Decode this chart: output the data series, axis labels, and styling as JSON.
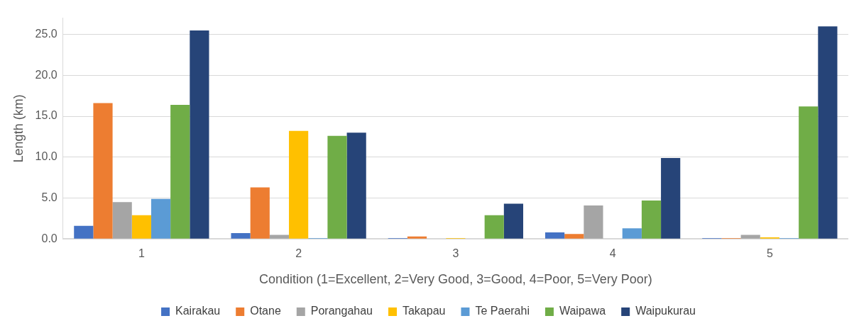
{
  "chart_data": {
    "type": "bar",
    "xlabel": "Condition (1=Excellent, 2=Very Good, 3=Good, 4=Poor, 5=Very Poor)",
    "ylabel": "Length (km)",
    "categories": [
      "1",
      "2",
      "3",
      "4",
      "5"
    ],
    "series": [
      {
        "name": "Kairakau",
        "color": "#4472c4",
        "values": [
          1.6,
          0.7,
          0.1,
          0.8,
          0.1
        ]
      },
      {
        "name": "Otane",
        "color": "#ed7d31",
        "values": [
          16.6,
          6.3,
          0.3,
          0.6,
          0.1
        ]
      },
      {
        "name": "Porangahau",
        "color": "#a5a5a5",
        "values": [
          4.5,
          0.5,
          0,
          4.1,
          0.5
        ]
      },
      {
        "name": "Takapau",
        "color": "#ffc000",
        "values": [
          2.9,
          13.2,
          0.1,
          0,
          0.2
        ]
      },
      {
        "name": "Te Paerahi",
        "color": "#5b9bd5",
        "values": [
          4.9,
          0.1,
          0,
          1.3,
          0.1
        ]
      },
      {
        "name": "Waipawa",
        "color": "#70ad47",
        "values": [
          16.4,
          12.6,
          2.9,
          4.7,
          16.2
        ]
      },
      {
        "name": "Waipukurau",
        "color": "#264478",
        "values": [
          25.5,
          13.0,
          4.3,
          9.9,
          26.0
        ]
      }
    ],
    "ylim": [
      0,
      27
    ],
    "yticks": [
      {
        "value": 0,
        "label": "0.0"
      },
      {
        "value": 5,
        "label": "5.0"
      },
      {
        "value": 10,
        "label": "10.0"
      },
      {
        "value": 15,
        "label": "15.0"
      },
      {
        "value": 20,
        "label": "20.0"
      },
      {
        "value": 25,
        "label": "25.0"
      }
    ],
    "grid": "y",
    "legend": "bottom"
  }
}
